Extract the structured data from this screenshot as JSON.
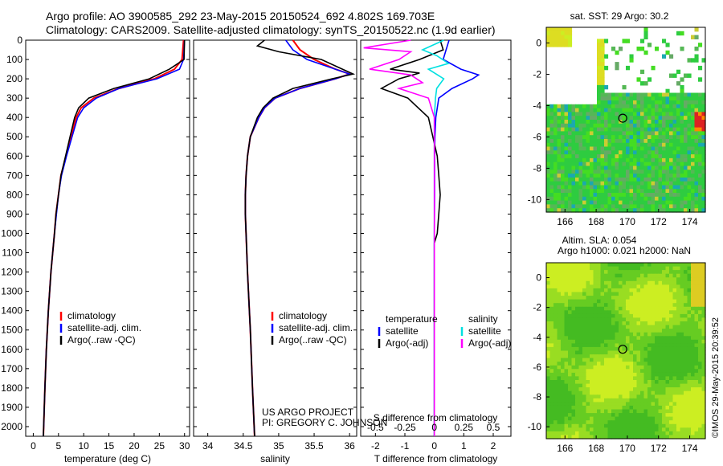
{
  "header": {
    "line1": "Argo profile: AO 3900585_292 23-May-2015 20150524_692 4.802S 169.703E",
    "line2": "Climatology: CARS2009. Satellite-adjusted climatology: synTS_20150522.nc (1.9d earlier)"
  },
  "depth_ticks": [
    "0",
    "100",
    "200",
    "300",
    "400",
    "500",
    "600",
    "700",
    "800",
    "900",
    "1000",
    "1100",
    "1200",
    "1300",
    "1400",
    "1500",
    "1600",
    "1700",
    "1800",
    "1900",
    "2000"
  ],
  "colors": {
    "clim": "#ff0000",
    "sat": "#0000ff",
    "argo": "#000000",
    "sat_s": "#00e0e0",
    "argo_s": "#ff00ff"
  },
  "chart_data": [
    {
      "type": "line",
      "title": "",
      "xlabel": "temperature (deg C)",
      "ylabel": "depth",
      "xlim": [
        -1.5,
        31
      ],
      "ylim": [
        2050,
        0
      ],
      "xticks": [
        "0",
        "5",
        "10",
        "15",
        "20",
        "25",
        "30"
      ],
      "legend": [
        "climatology",
        "satellite-adj. clim.",
        "Argo(..raw -QC)"
      ],
      "series": [
        {
          "name": "climatology",
          "depth": [
            0,
            100,
            150,
            200,
            250,
            300,
            350,
            400,
            500,
            600,
            700,
            800,
            900,
            1000,
            1200,
            1400,
            1600,
            1800,
            2050
          ],
          "values": [
            29.8,
            29.5,
            28,
            24,
            17,
            12,
            9.5,
            8.5,
            7.5,
            6.5,
            5.5,
            5,
            4.5,
            4.2,
            3.5,
            3,
            2.6,
            2.3,
            2
          ]
        },
        {
          "name": "satellite-adj. clim.",
          "depth": [
            0,
            100,
            150,
            200,
            250,
            300,
            350,
            400,
            500,
            600,
            700,
            800,
            900,
            1000,
            1200,
            1400,
            1600,
            1800,
            2050
          ],
          "values": [
            30,
            29.8,
            29,
            24.5,
            17,
            12.5,
            10,
            8.8,
            7.7,
            6.6,
            5.6,
            5,
            4.6,
            4.2,
            3.5,
            3,
            2.6,
            2.3,
            2
          ]
        },
        {
          "name": "Argo(..raw -QC)",
          "depth": [
            0,
            100,
            150,
            200,
            250,
            300,
            350,
            400,
            500,
            600,
            700,
            800,
            900,
            1000,
            1200,
            1400,
            1600,
            1800,
            2050
          ],
          "values": [
            30,
            29.9,
            27,
            23,
            16,
            11,
            9,
            8.2,
            7.3,
            6.4,
            5.5,
            5,
            4.5,
            4.2,
            3.5,
            3,
            2.6,
            2.3,
            2
          ]
        }
      ]
    },
    {
      "type": "line",
      "title": "",
      "xlabel": "salinity",
      "ylabel": "depth",
      "xlim": [
        33.8,
        36.1
      ],
      "ylim": [
        2050,
        0
      ],
      "xticks": [
        "34",
        "34.5",
        "35",
        "35.5",
        "36"
      ],
      "legend": [
        "climatology",
        "satellite-adj. clim.",
        "Argo(..raw -QC)"
      ],
      "annotation": [
        "US ARGO PROJECT",
        "PI: GREGORY C. JOHNSON"
      ],
      "series": [
        {
          "name": "climatology",
          "depth": [
            0,
            50,
            100,
            150,
            175,
            200,
            250,
            300,
            350,
            400,
            500,
            600,
            700,
            800,
            900,
            1000,
            1200,
            1500,
            1800,
            2050
          ],
          "values": [
            35.2,
            35.3,
            35.5,
            35.8,
            36.0,
            35.8,
            35.3,
            34.95,
            34.8,
            34.72,
            34.6,
            34.56,
            34.54,
            34.53,
            34.53,
            34.54,
            34.56,
            34.6,
            34.63,
            34.66
          ]
        },
        {
          "name": "satellite-adj. clim.",
          "depth": [
            0,
            50,
            100,
            150,
            175,
            200,
            250,
            300,
            350,
            400,
            500,
            600,
            700,
            800,
            900,
            1000,
            1200,
            1500,
            1800,
            2050
          ],
          "values": [
            35.1,
            35.2,
            35.4,
            35.8,
            36.0,
            35.8,
            35.3,
            34.95,
            34.8,
            34.72,
            34.6,
            34.56,
            34.54,
            34.53,
            34.53,
            34.54,
            34.56,
            34.6,
            34.63,
            34.66
          ]
        },
        {
          "name": "Argo(..raw -QC)",
          "depth": [
            0,
            30,
            60,
            100,
            150,
            175,
            200,
            250,
            300,
            350,
            400,
            500,
            600,
            700,
            800,
            900,
            1000,
            1200,
            1500,
            1800,
            2050
          ],
          "values": [
            34.8,
            34.7,
            35.0,
            35.6,
            35.9,
            36.05,
            35.75,
            35.2,
            34.92,
            34.78,
            34.7,
            34.6,
            34.56,
            34.54,
            34.53,
            34.53,
            34.54,
            34.56,
            34.6,
            34.63,
            34.66
          ]
        }
      ]
    },
    {
      "type": "line",
      "title": "",
      "xlabel": "T difference from climatology",
      "xlabel2": "S difference from climatology",
      "xlim": [
        -2.5,
        2.6
      ],
      "ylim": [
        2050,
        0
      ],
      "xticks": [
        "-2",
        "-1",
        "0",
        "1",
        "2"
      ],
      "xticks2": [
        "-0.5",
        "-0.25",
        "0",
        "0.25",
        "0.5"
      ],
      "legend_titles": [
        "temperature",
        "salinity"
      ],
      "legend": [
        "satellite",
        "Argo(-adj)",
        "satellite",
        "Argo(-adj)"
      ],
      "series": [
        {
          "name": "temperature satellite",
          "depth": [
            0,
            50,
            100,
            150,
            180,
            200,
            250,
            300,
            400,
            500,
            600,
            800,
            1000,
            1200,
            1500,
            2050
          ],
          "values": [
            0.5,
            0.4,
            0.3,
            0.9,
            1.5,
            1.3,
            0.6,
            0.15,
            0.05,
            0.02,
            0.01,
            0.01,
            0,
            0,
            0,
            0
          ]
        },
        {
          "name": "temperature Argo(-adj)",
          "depth": [
            0,
            50,
            100,
            150,
            170,
            200,
            250,
            300,
            400,
            500,
            600,
            700,
            800,
            900,
            1000,
            1050,
            1200,
            1500,
            2050
          ],
          "values": [
            0.2,
            0.3,
            -0.5,
            -1.5,
            -0.5,
            -1.2,
            -1.8,
            -0.9,
            -0.2,
            -0.05,
            0.1,
            0.15,
            0.2,
            0.15,
            0.1,
            0,
            0,
            0,
            0
          ]
        },
        {
          "name": "salinity satellite",
          "depth": [
            0,
            50,
            80,
            120,
            150,
            200,
            250,
            300,
            400,
            500,
            1000,
            2050
          ],
          "values": [
            0.08,
            -0.1,
            0.02,
            0.12,
            -0.05,
            0.08,
            0.02,
            0.01,
            0,
            0,
            0,
            0
          ]
        },
        {
          "name": "salinity Argo(-adj)",
          "depth": [
            0,
            40,
            60,
            100,
            150,
            180,
            220,
            250,
            300,
            400,
            500,
            1000,
            2050
          ],
          "values": [
            -0.2,
            -0.6,
            -0.2,
            -0.3,
            -0.55,
            -0.2,
            -0.1,
            -0.3,
            -0.05,
            0,
            0,
            0,
            0
          ]
        }
      ]
    },
    {
      "type": "heatmap",
      "title": "sat. SST: 29 Argo: 30.2",
      "xticks": [
        "166",
        "168",
        "170",
        "172",
        "174"
      ],
      "yticks": [
        "0",
        "-2",
        "-4",
        "-6",
        "-8",
        "-10"
      ],
      "xlim": [
        164.8,
        175
      ],
      "ylim": [
        -10.8,
        1
      ],
      "marker": [
        169.703,
        -4.802
      ]
    },
    {
      "type": "heatmap",
      "title": "Altim. SLA: 0.054",
      "subtitle": "Argo h1000: 0.021 h2000: NaN",
      "xticks": [
        "166",
        "168",
        "170",
        "172",
        "174"
      ],
      "yticks": [
        "0",
        "-2",
        "-4",
        "-6",
        "-8",
        "-10"
      ],
      "xlim": [
        164.8,
        175
      ],
      "ylim": [
        -10.8,
        1
      ],
      "marker": [
        169.703,
        -4.802
      ]
    }
  ],
  "footer_stamp": "©IMOS 29-May-2015 20:39:52"
}
